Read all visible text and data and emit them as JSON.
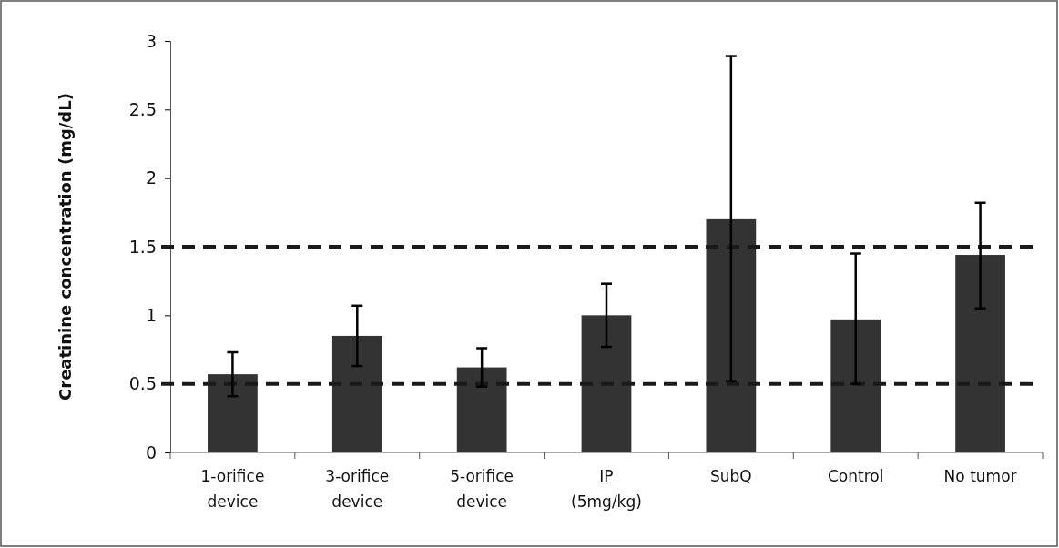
{
  "chart_data": {
    "type": "bar",
    "ylabel": "Creatinine concentration (mg/dL)",
    "categories": [
      "1-orifice device",
      "3-orifice device",
      "5-orifice device",
      "IP (5mg/kg)",
      "SubQ",
      "Control",
      "No tumor"
    ],
    "values": [
      0.57,
      0.85,
      0.62,
      1.0,
      1.7,
      0.97,
      1.44
    ],
    "errors": [
      [
        0.41,
        0.73
      ],
      [
        0.63,
        1.07
      ],
      [
        0.48,
        0.76
      ],
      [
        0.77,
        1.23
      ],
      [
        0.52,
        2.89
      ],
      [
        0.5,
        1.45
      ],
      [
        1.05,
        1.82
      ]
    ],
    "color": "#333333",
    "ylim": [
      0,
      3
    ],
    "yticks": [
      0,
      0.5,
      1,
      1.5,
      2,
      2.5,
      3
    ],
    "ref_lines": [
      {
        "axis": "y",
        "value": 0.5,
        "line_style": "dashed",
        "color": "#1a1a1a"
      },
      {
        "axis": "y",
        "value": 1.5,
        "line_style": "dashed",
        "color": "#1a1a1a"
      }
    ]
  }
}
